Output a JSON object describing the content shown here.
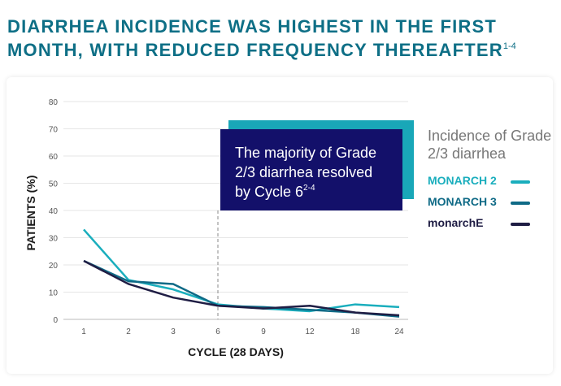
{
  "title": {
    "text": "DIARRHEA INCIDENCE WAS HIGHEST IN THE FIRST MONTH, WITH REDUCED FREQUENCY THEREAFTER",
    "superscript": "1-4"
  },
  "callout": {
    "text": "The majority of Grade 2/3 diarrhea resolved by Cycle 6",
    "superscript": "2-4"
  },
  "legend": {
    "title": "Incidence of Grade 2/3 diarrhea"
  },
  "colors": {
    "monarch2": "#1aaebd",
    "monarch3": "#0f6a86",
    "monarchE": "#1f1d44",
    "callout_bg": "#13106a",
    "callout_accent": "#19a7b8",
    "title": "#0e6f86"
  },
  "chart_data": {
    "type": "line",
    "title": "",
    "xlabel": "CYCLE (28 DAYS)",
    "ylabel": "PATIENTS (%)",
    "categories": [
      "1",
      "2",
      "3",
      "6",
      "9",
      "12",
      "18",
      "24"
    ],
    "ylim": [
      0,
      80
    ],
    "yticks": [
      0,
      10,
      20,
      30,
      40,
      50,
      60,
      70,
      80
    ],
    "grid": true,
    "legend_position": "right",
    "reference_line_at": "6",
    "series": [
      {
        "name": "MONARCH 2",
        "color": "#1aaebd",
        "values": [
          33,
          14.5,
          11,
          5.5,
          4,
          3,
          5.5,
          4.5
        ]
      },
      {
        "name": "MONARCH 3",
        "color": "#0f6a86",
        "values": [
          21.5,
          14,
          13,
          5,
          4.5,
          3.5,
          2.5,
          1
        ]
      },
      {
        "name": "monarchE",
        "color": "#1f1d44",
        "values": [
          21.5,
          13,
          8,
          5,
          4,
          5,
          2.5,
          1.5
        ]
      }
    ]
  }
}
